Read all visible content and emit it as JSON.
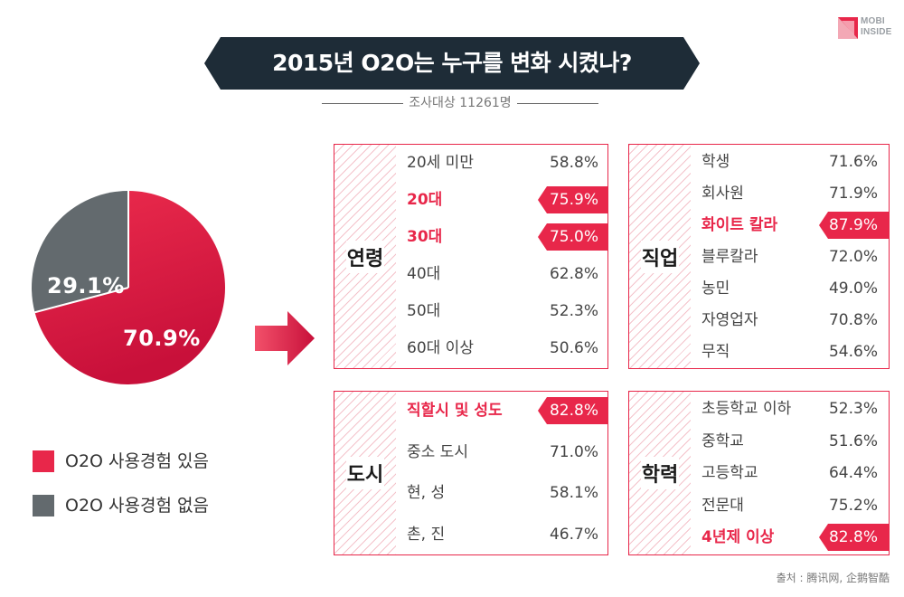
{
  "colors": {
    "accent": "#e8274a",
    "accent_dark": "#c8103a",
    "gray": "#636a6e",
    "banner": "#1e2c37",
    "hatch": "#f4c3cb"
  },
  "logo": {
    "line1": "MOBI",
    "line2": "INSIDE"
  },
  "title": "2015년 O2O는 누구를 변화 시켰나?",
  "survey_note": "조사대상 11261명",
  "source": "출처 :  腾讯网, 企鹅智酷",
  "chart_data": [
    {
      "type": "pie",
      "title": "2015년 O2O는 누구를 변화 시켰나?",
      "slices": [
        {
          "name": "O2O 사용경험 있음",
          "value": 70.9,
          "label": "70.9%",
          "color": "#e8274a"
        },
        {
          "name": "O2O 사용경험 없음",
          "value": 29.1,
          "label": "29.1%",
          "color": "#636a6e"
        }
      ],
      "legend": [
        "O2O 사용경험 있음",
        "O2O 사용경험 없음"
      ]
    },
    {
      "type": "table",
      "title": "연령",
      "rows": [
        {
          "label": "20세 미만",
          "value": "58.8%",
          "highlight": false
        },
        {
          "label": "20대",
          "value": "75.9%",
          "highlight": true
        },
        {
          "label": "30대",
          "value": "75.0%",
          "highlight": true
        },
        {
          "label": "40대",
          "value": "62.8%",
          "highlight": false
        },
        {
          "label": "50대",
          "value": "52.3%",
          "highlight": false
        },
        {
          "label": "60대 이상",
          "value": "50.6%",
          "highlight": false
        }
      ]
    },
    {
      "type": "table",
      "title": "직업",
      "rows": [
        {
          "label": "학생",
          "value": "71.6%",
          "highlight": false
        },
        {
          "label": "회사원",
          "value": "71.9%",
          "highlight": false
        },
        {
          "label": "화이트 칼라",
          "value": "87.9%",
          "highlight": true
        },
        {
          "label": "블루칼라",
          "value": "72.0%",
          "highlight": false
        },
        {
          "label": "농민",
          "value": "49.0%",
          "highlight": false
        },
        {
          "label": "자영업자",
          "value": "70.8%",
          "highlight": false
        },
        {
          "label": "무직",
          "value": "54.6%",
          "highlight": false
        }
      ]
    },
    {
      "type": "table",
      "title": "도시",
      "rows": [
        {
          "label": "직할시 및 성도",
          "value": "82.8%",
          "highlight": true
        },
        {
          "label": "중소 도시",
          "value": "71.0%",
          "highlight": false
        },
        {
          "label": "현, 성",
          "value": "58.1%",
          "highlight": false
        },
        {
          "label": "촌, 진",
          "value": "46.7%",
          "highlight": false
        }
      ]
    },
    {
      "type": "table",
      "title": "학력",
      "rows": [
        {
          "label": "초등학교 이하",
          "value": "52.3%",
          "highlight": false
        },
        {
          "label": "중학교",
          "value": "51.6%",
          "highlight": false
        },
        {
          "label": "고등학교",
          "value": "64.4%",
          "highlight": false
        },
        {
          "label": "전문대",
          "value": "75.2%",
          "highlight": false
        },
        {
          "label": "4년제 이상",
          "value": "82.8%",
          "highlight": true
        }
      ]
    }
  ]
}
